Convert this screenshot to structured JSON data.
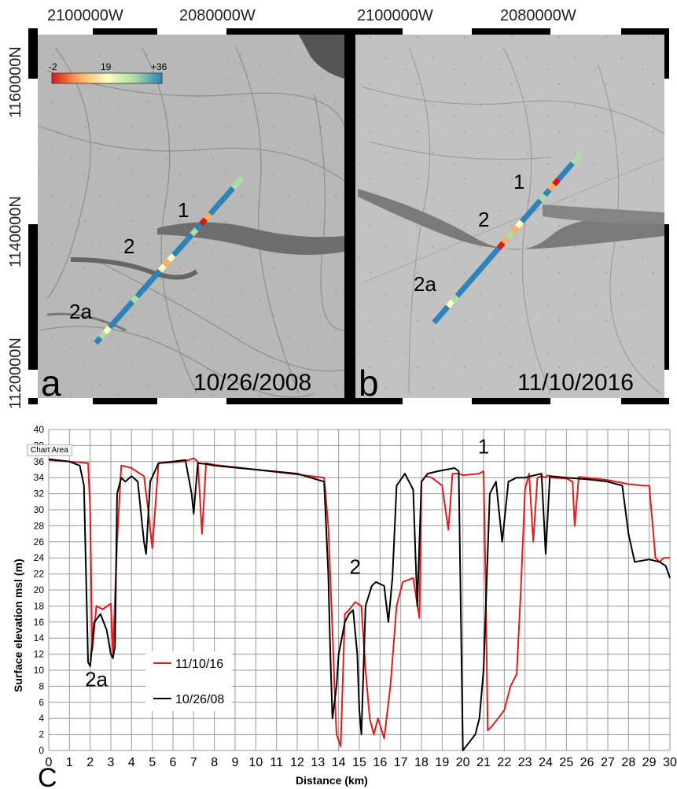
{
  "map_panels": {
    "top_lon_labels": [
      "2100000W",
      "2080000W",
      "2100000W",
      "2080000W"
    ],
    "lat_labels": [
      "1160000N",
      "1140000N",
      "1120000N"
    ],
    "colorbar": {
      "ticks": [
        "-2",
        "19",
        "+36"
      ],
      "colors": [
        "#d7191c",
        "#fdae61",
        "#ffffbf",
        "#abdda4",
        "#2b83ba"
      ]
    },
    "panel_a": {
      "letter": "a",
      "date": "10/26/2008",
      "labels": [
        "1",
        "2",
        "2a"
      ]
    },
    "panel_b": {
      "letter": "b",
      "date": "11/10/2016",
      "labels": [
        "1",
        "2",
        "2a"
      ]
    }
  },
  "panel_c_letter": "C",
  "tooltip": "Chart Area",
  "chart_data": {
    "type": "line",
    "xlabel": "Distance (km)",
    "ylabel": "Surface elevation msl (m)",
    "xlim": [
      0,
      30
    ],
    "ylim": [
      0,
      40
    ],
    "xticks": [
      "0",
      "1",
      "2",
      "3",
      "4",
      "5",
      "6",
      "7",
      "8",
      "9",
      "10",
      "11",
      "12",
      "13",
      "14",
      "15",
      "16",
      "17",
      "18",
      "19",
      "20",
      "21",
      "22",
      "23",
      "24",
      "25",
      "26",
      "27",
      "28",
      "29",
      "30"
    ],
    "yticks": [
      "0",
      "2",
      "4",
      "6",
      "8",
      "10",
      "12",
      "14",
      "16",
      "18",
      "20",
      "22",
      "24",
      "26",
      "28",
      "30",
      "32",
      "34",
      "36",
      "38",
      "40"
    ],
    "grid": true,
    "legend_placement": "lower-left",
    "annotations": [
      {
        "text": "1",
        "x": 21.0,
        "y": 37.0
      },
      {
        "text": "2",
        "x": 14.8,
        "y": 22.0
      },
      {
        "text": "2a",
        "x": 2.3,
        "y": 8.0
      }
    ],
    "series": [
      {
        "name": "11/10/16",
        "color": "#e41a1c",
        "x": [
          0,
          1.0,
          1.9,
          2.0,
          2.1,
          2.3,
          2.6,
          3.0,
          3.1,
          3.3,
          3.5,
          3.7,
          4.0,
          4.4,
          4.6,
          4.8,
          5.0,
          5.3,
          6.5,
          7.0,
          7.2,
          7.4,
          7.6,
          8.0,
          10.0,
          12.0,
          13.3,
          13.5,
          13.7,
          13.8,
          13.9,
          14.1,
          14.3,
          14.5,
          14.8,
          15.1,
          15.3,
          15.5,
          15.7,
          15.9,
          16.2,
          16.5,
          16.8,
          17.1,
          17.6,
          17.9,
          18.0,
          18.2,
          18.5,
          19.0,
          19.3,
          19.5,
          19.8,
          20.0,
          20.8,
          21.0,
          21.1,
          21.2,
          21.4,
          21.7,
          22.0,
          22.3,
          22.6,
          22.8,
          23.0,
          23.2,
          23.4,
          23.6,
          23.8,
          24.0,
          24.1,
          24.3,
          25.0,
          25.3,
          25.4,
          25.6,
          26.0,
          27.0,
          28.0,
          28.7,
          29.0,
          29.3,
          29.5,
          29.7,
          30.0
        ],
        "y": [
          36.2,
          36.0,
          35.8,
          30.0,
          12.5,
          18.0,
          17.6,
          18.3,
          12.0,
          26.0,
          35.5,
          35.4,
          35.2,
          34.5,
          34.2,
          30.0,
          25.2,
          35.8,
          36.0,
          36.4,
          36.0,
          27.0,
          35.8,
          35.6,
          35.0,
          34.4,
          34.0,
          28.0,
          15.0,
          8.0,
          2.0,
          0.5,
          17.0,
          17.5,
          18.5,
          18.0,
          10.0,
          4.0,
          2.0,
          4.0,
          1.5,
          8.0,
          18.0,
          21.0,
          21.5,
          16.5,
          33.5,
          34.2,
          34.0,
          33.0,
          27.5,
          34.5,
          34.5,
          34.3,
          34.5,
          34.8,
          21.0,
          2.5,
          3.0,
          4.0,
          5.0,
          8.0,
          9.5,
          20.0,
          32.5,
          34.5,
          26.0,
          34.0,
          34.2,
          34.0,
          34.3,
          34.0,
          33.9,
          33.5,
          28.0,
          34.1,
          34.0,
          33.7,
          33.2,
          33.0,
          33.0,
          24.0,
          23.5,
          24.0,
          24.0
        ]
      },
      {
        "name": "10/26/08",
        "color": "#000000",
        "x": [
          0,
          1.0,
          1.5,
          1.7,
          1.8,
          1.9,
          2.0,
          2.2,
          2.5,
          2.8,
          3.0,
          3.1,
          3.2,
          3.3,
          3.5,
          3.7,
          4.0,
          4.3,
          4.6,
          4.7,
          4.9,
          5.3,
          6.0,
          6.6,
          6.9,
          7.0,
          7.2,
          7.6,
          8.0,
          10.0,
          12.0,
          13.3,
          13.5,
          13.6,
          13.7,
          13.9,
          14.0,
          14.3,
          14.5,
          14.7,
          14.9,
          15.0,
          15.1,
          15.3,
          15.6,
          15.8,
          16.2,
          16.4,
          16.6,
          16.8,
          17.2,
          17.6,
          17.8,
          18.0,
          18.3,
          18.8,
          19.2,
          19.6,
          19.8,
          20.0,
          20.3,
          20.6,
          20.8,
          21.0,
          21.3,
          21.6,
          21.9,
          22.2,
          22.6,
          23.0,
          23.3,
          23.8,
          24.0,
          24.2,
          25.0,
          26.0,
          27.0,
          27.7,
          28.0,
          28.3,
          29.0,
          29.5,
          29.8,
          30.0
        ],
        "y": [
          36.3,
          36.0,
          35.5,
          33.0,
          22.0,
          11.0,
          10.5,
          16.0,
          17.0,
          15.0,
          12.0,
          11.5,
          13.0,
          32.0,
          34.0,
          33.5,
          34.2,
          33.5,
          26.0,
          24.5,
          33.5,
          35.8,
          36.0,
          36.2,
          32.0,
          29.5,
          35.8,
          35.7,
          35.5,
          35.0,
          34.5,
          33.5,
          22.0,
          12.0,
          4.0,
          8.0,
          12.0,
          16.0,
          17.0,
          17.5,
          12.0,
          5.0,
          2.0,
          18.0,
          20.5,
          21.0,
          20.5,
          16.0,
          21.5,
          33.0,
          34.5,
          32.5,
          18.0,
          33.5,
          34.5,
          34.8,
          35.0,
          35.2,
          34.8,
          0.0,
          1.0,
          2.0,
          4.0,
          10.0,
          32.0,
          33.5,
          26.0,
          33.5,
          34.0,
          34.0,
          34.2,
          34.5,
          24.5,
          34.2,
          34.0,
          33.8,
          33.5,
          33.0,
          27.0,
          23.5,
          23.8,
          23.5,
          23.0,
          21.5
        ]
      }
    ]
  }
}
